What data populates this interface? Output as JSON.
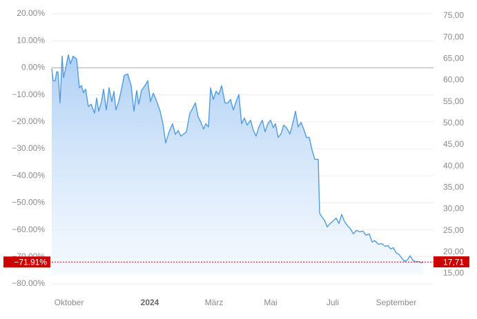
{
  "chart_data": {
    "type": "line",
    "ylim": [
      -80,
      20
    ],
    "yticks": [
      {
        "value": 20,
        "label": "20.00%"
      },
      {
        "value": 10,
        "label": "10.00%"
      },
      {
        "value": 0,
        "label": "0.00%"
      },
      {
        "value": -10,
        "label": "−10.00%"
      },
      {
        "value": -20,
        "label": "−20.00%"
      },
      {
        "value": -30,
        "label": "−30.00%"
      },
      {
        "value": -40,
        "label": "−40.00%"
      },
      {
        "value": -50,
        "label": "−50.00%"
      },
      {
        "value": -60,
        "label": "−60.00%"
      },
      {
        "value": -70,
        "label": "−70.00%"
      },
      {
        "value": -80,
        "label": "−80.00%"
      }
    ],
    "y2lim": [
      12.59,
      75.48
    ],
    "y2ticks": [
      {
        "value": 75,
        "label": "75,00"
      },
      {
        "value": 70,
        "label": "70,00"
      },
      {
        "value": 65,
        "label": "65,00"
      },
      {
        "value": 60,
        "label": "60,00"
      },
      {
        "value": 55,
        "label": "55,00"
      },
      {
        "value": 50,
        "label": "50,00"
      },
      {
        "value": 45,
        "label": "45,00"
      },
      {
        "value": 40,
        "label": "40,00"
      },
      {
        "value": 35,
        "label": "35,00"
      },
      {
        "value": 30,
        "label": "30,00"
      },
      {
        "value": 25,
        "label": "25,00"
      },
      {
        "value": 20,
        "label": "20,00"
      },
      {
        "value": 15,
        "label": "15,00"
      }
    ],
    "xlim": [
      0,
      553
    ],
    "xticks": [
      {
        "value": 25,
        "label": "Oktober"
      },
      {
        "value": 142,
        "label": "2024"
      },
      {
        "value": 235,
        "label": "März"
      },
      {
        "value": 317,
        "label": "Mai"
      },
      {
        "value": 407,
        "label": "Juli"
      },
      {
        "value": 499,
        "label": "September"
      }
    ],
    "grid": true,
    "x": [
      0,
      2,
      5,
      7,
      9,
      12,
      15,
      17,
      20,
      24,
      27,
      31,
      36,
      40,
      43,
      46,
      49,
      53,
      57,
      62,
      65,
      68,
      72,
      75,
      79,
      83,
      87,
      90,
      93,
      97,
      101,
      105,
      110,
      115,
      119,
      123,
      126,
      130,
      135,
      139,
      143,
      147,
      151,
      157,
      161,
      165,
      170,
      175,
      179,
      183,
      187,
      191,
      195,
      200,
      204,
      208,
      212,
      216,
      220,
      223,
      227,
      230,
      234,
      238,
      242,
      246,
      251,
      255,
      259,
      263,
      267,
      271,
      275,
      279,
      283,
      288,
      292,
      296,
      300,
      305,
      309,
      313,
      317,
      321,
      324,
      328,
      332,
      336,
      340,
      345,
      349,
      353,
      357,
      361,
      365,
      369,
      373,
      377,
      381,
      386,
      388,
      391,
      395,
      399,
      403,
      407,
      412,
      416,
      420,
      424,
      428,
      432,
      437,
      441,
      446,
      451,
      455,
      460,
      464,
      468,
      473,
      478,
      483,
      487,
      491,
      495,
      499,
      503,
      507,
      511,
      515,
      519,
      523,
      527,
      531,
      535,
      538
    ],
    "series": [
      {
        "color": "#4f9be3",
        "values": [
          -0.3,
          -4.8,
          -4.8,
          -1.5,
          -1.5,
          -13.0,
          4.3,
          -3.6,
          -0.3,
          4.8,
          1.5,
          4.3,
          3.3,
          -7.4,
          -6.6,
          -9.2,
          -7.9,
          -14.3,
          -13.5,
          -16.8,
          -11.2,
          -16.1,
          -12.5,
          -7.9,
          -15.6,
          -7.4,
          -12.5,
          -8.7,
          -15.6,
          -12.5,
          -7.9,
          -2.8,
          -2.3,
          -6.6,
          -16.1,
          -8.4,
          -13.5,
          -8.4,
          -6.6,
          -4.8,
          -12.5,
          -9.4,
          -11.7,
          -16.1,
          -20.7,
          -27.8,
          -23.7,
          -20.7,
          -24.7,
          -23.2,
          -25.3,
          -24.5,
          -23.7,
          -16.8,
          -15.1,
          -13.0,
          -18.1,
          -20.2,
          -22.7,
          -20.7,
          -21.9,
          -7.4,
          -11.7,
          -8.7,
          -9.9,
          -6.6,
          -13.0,
          -13.0,
          -11.7,
          -15.6,
          -12.5,
          -9.9,
          -20.7,
          -18.6,
          -21.2,
          -19.4,
          -23.2,
          -25.3,
          -21.9,
          -19.4,
          -23.7,
          -20.7,
          -19.4,
          -22.2,
          -20.7,
          -25.8,
          -24.5,
          -21.2,
          -22.2,
          -24.5,
          -20.7,
          -16.1,
          -21.9,
          -20.2,
          -22.7,
          -25.8,
          -25.8,
          -30.4,
          -33.9,
          -33.9,
          -53.8,
          -55.1,
          -56.4,
          -58.9,
          -57.7,
          -56.9,
          -55.6,
          -57.7,
          -54.3,
          -56.9,
          -58.4,
          -59.4,
          -61.5,
          -60.2,
          -60.7,
          -60.5,
          -62.0,
          -61.5,
          -64.5,
          -64.0,
          -65.3,
          -65.1,
          -66.1,
          -65.8,
          -67.1,
          -66.6,
          -68.6,
          -69.1,
          -70.4,
          -71.7,
          -71.2,
          -69.6,
          -71.2,
          -71.9,
          -71.7,
          -72.2,
          -71.91
        ]
      }
    ],
    "last": {
      "value": -71.91,
      "label": "−71.91%",
      "price": 17.71,
      "price_label": "17,71",
      "color": "#cc0000"
    }
  }
}
